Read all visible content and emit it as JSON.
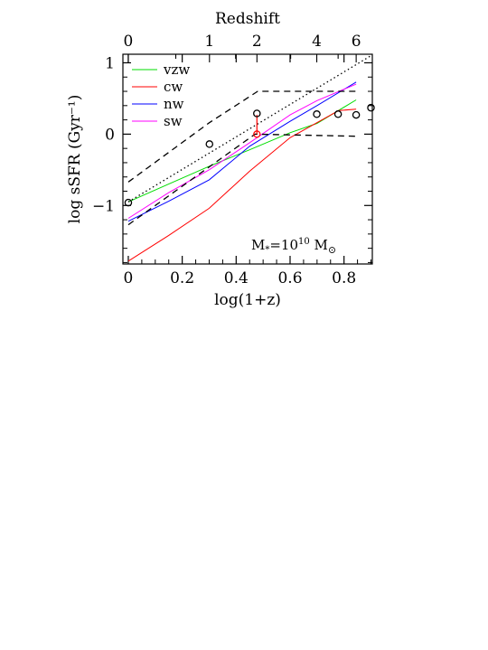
{
  "chart_data": {
    "type": "line",
    "xlabel": "log(1+z)",
    "ylabel": "log sSFR (Gyr⁻¹)",
    "top_axis_label": "Redshift",
    "xlim": [
      -0.02,
      0.905
    ],
    "ylim": [
      -1.82,
      1.12
    ],
    "x_ticks": [
      0,
      0.2,
      0.4,
      0.6,
      0.8
    ],
    "x_tick_labels": [
      "0",
      "0.2",
      "0.4",
      "0.6",
      "0.8"
    ],
    "y_ticks": [
      -1,
      0,
      1
    ],
    "y_tick_labels": [
      "−1",
      "0",
      "1"
    ],
    "top_ticks": [
      0,
      1,
      2,
      4,
      6
    ],
    "top_tick_labels": [
      "0",
      "1",
      "2",
      "4",
      "6"
    ],
    "annotation": {
      "mass_prefix": "M",
      "mass_sub": "*",
      "mass_value": "=10",
      "mass_exp": "10",
      "mass_unit": " M",
      "mass_unit_sub": "⊙"
    },
    "series": [
      {
        "name": "vzw",
        "color": "#00dd00",
        "style": "solid",
        "x": [
          0,
          0.15,
          0.3,
          0.45,
          0.6,
          0.7,
          0.845
        ],
        "y": [
          -0.95,
          -0.7,
          -0.45,
          -0.22,
          0.02,
          0.15,
          0.48
        ]
      },
      {
        "name": "cw",
        "color": "#ff0000",
        "style": "solid",
        "x": [
          0,
          0.15,
          0.3,
          0.45,
          0.6,
          0.78,
          0.845
        ],
        "y": [
          -1.78,
          -1.42,
          -1.04,
          -0.52,
          -0.05,
          0.33,
          0.35
        ]
      },
      {
        "name": "nw",
        "color": "#0000ff",
        "style": "solid",
        "x": [
          0,
          0.15,
          0.3,
          0.45,
          0.6,
          0.7,
          0.845
        ],
        "y": [
          -1.22,
          -0.94,
          -0.64,
          -0.17,
          0.18,
          0.4,
          0.73
        ]
      },
      {
        "name": "sw",
        "color": "#ff00ff",
        "style": "solid",
        "x": [
          0,
          0.15,
          0.3,
          0.45,
          0.6,
          0.7,
          0.845
        ],
        "y": [
          -1.18,
          -0.82,
          -0.5,
          -0.12,
          0.27,
          0.47,
          0.7
        ]
      },
      {
        "name": "",
        "color": "#000000",
        "style": "dashed",
        "x": [
          0,
          0.3,
          0.48,
          0.845
        ],
        "y": [
          -0.67,
          0.16,
          0.6,
          0.6
        ]
      },
      {
        "name": "",
        "color": "#000000",
        "style": "dashed",
        "x": [
          0,
          0.47,
          0.845
        ],
        "y": [
          -1.27,
          0.0,
          -0.03
        ]
      },
      {
        "name": "",
        "color": "#000000",
        "style": "dotted",
        "x": [
          0,
          0.9
        ],
        "y": [
          -0.95,
          1.1
        ]
      }
    ],
    "points": {
      "marker": "open-circle",
      "color": "#000000",
      "x": [
        0,
        0.301,
        0.477,
        0.699,
        0.778,
        0.845,
        0.9
      ],
      "y": [
        -0.96,
        -0.14,
        0.29,
        0.28,
        0.28,
        0.27,
        0.37
      ]
    },
    "error_bar": {
      "color": "#ff0000",
      "x": 0.477,
      "y_low": 0.0,
      "y_high": 0.27
    },
    "legend_placement": "top-left",
    "grid": false
  }
}
